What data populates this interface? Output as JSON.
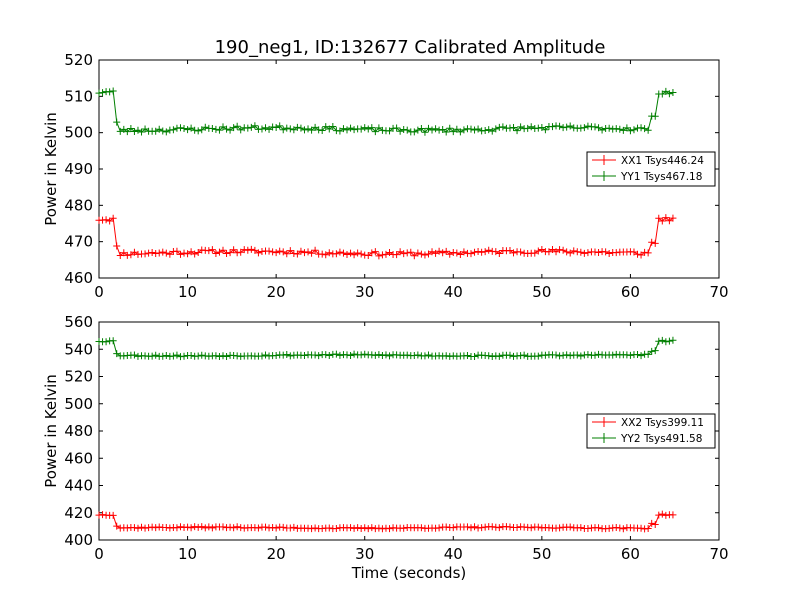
{
  "title": "190_neg1, ID:132677 Calibrated Amplitude",
  "chart_data": [
    {
      "type": "line",
      "xlabel": "",
      "ylabel": "Power in Kelvin",
      "xlim": [
        0,
        70
      ],
      "ylim": [
        460,
        520
      ],
      "xticks": [
        "0",
        "10",
        "20",
        "30",
        "40",
        "50",
        "60",
        "70"
      ],
      "yticks": [
        "460",
        "470",
        "480",
        "490",
        "500",
        "510",
        "520"
      ],
      "grid": false,
      "legend_position": "center-right",
      "series": [
        {
          "name": "XX1 Tsys446.24",
          "color": "#ff0000",
          "marker": "+",
          "base": 467,
          "high": 476.2,
          "noise": 0.6,
          "seed": 11
        },
        {
          "name": "YY1 Tsys467.18",
          "color": "#007f00",
          "marker": "+",
          "base": 501,
          "high": 511.2,
          "noise": 0.6,
          "seed": 23
        }
      ]
    },
    {
      "type": "line",
      "xlabel": "Time (seconds)",
      "ylabel": "Power in Kelvin",
      "xlim": [
        0,
        70
      ],
      "ylim": [
        400,
        560
      ],
      "xticks": [
        "0",
        "10",
        "20",
        "30",
        "40",
        "50",
        "60",
        "70"
      ],
      "yticks": [
        "400",
        "420",
        "440",
        "460",
        "480",
        "500",
        "520",
        "540",
        "560"
      ],
      "grid": false,
      "legend_position": "center-right",
      "series": [
        {
          "name": "XX2 Tsys399.11",
          "color": "#ff0000",
          "marker": "+",
          "base": 409,
          "high": 418.5,
          "noise": 0.5,
          "seed": 37
        },
        {
          "name": "YY2 Tsys491.58",
          "color": "#007f00",
          "marker": "+",
          "base": 535.5,
          "high": 546,
          "noise": 0.6,
          "seed": 53
        }
      ]
    }
  ]
}
